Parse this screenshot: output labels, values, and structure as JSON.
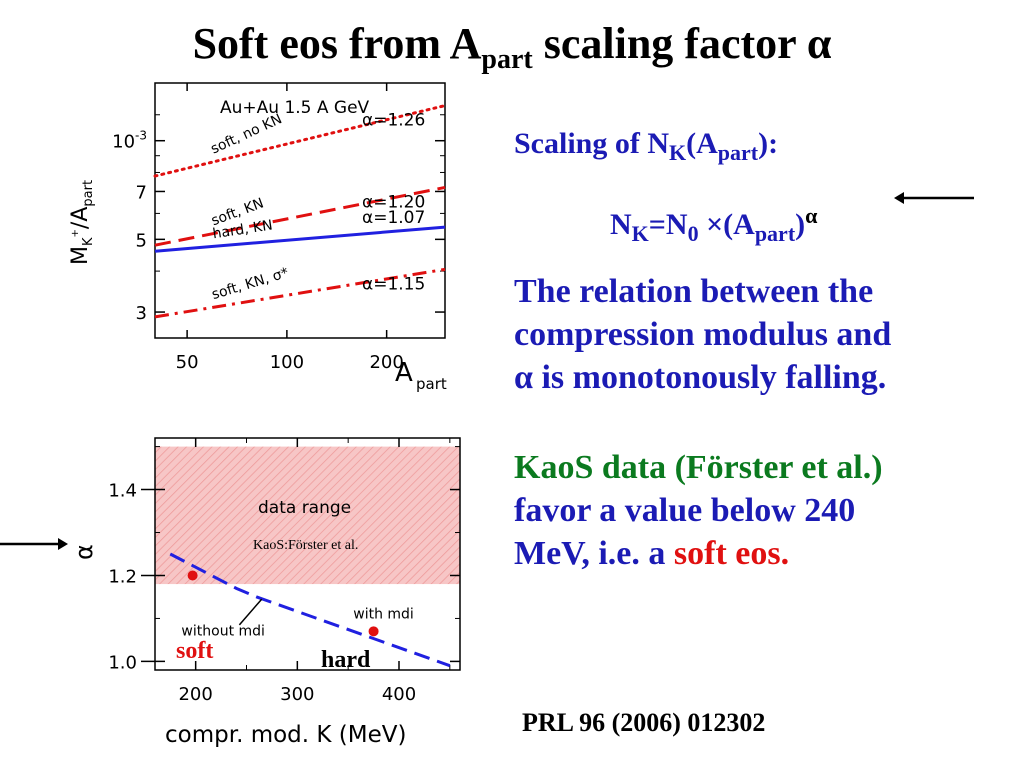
{
  "title": {
    "main": "Soft eos from A",
    "sub": "part",
    "rest": " scaling factor α"
  },
  "text": {
    "scaling_a": "Scaling of N",
    "scaling_b": "K",
    "scaling_c": "(A",
    "scaling_d": "part",
    "scaling_e": "):",
    "formula_a": "N",
    "formula_b": "K",
    "formula_c": "=N",
    "formula_d": "0",
    "formula_e": " ×(A",
    "formula_f": "part",
    "formula_g": ")",
    "formula_h": "α",
    "relation_1": "The relation between the",
    "relation_2": "compression modulus and",
    "relation_3": "α is monotonously falling.",
    "kaos_1": "KaoS data (Förster et al.)",
    "kaos_2": "favor a value below 240",
    "kaos_3a": "MeV, i.e. a ",
    "kaos_3b": "soft eos",
    "kaos_3c": ".",
    "reference": "PRL 96 (2006) 012302",
    "soft_label": "soft",
    "hard_label": "hard"
  },
  "colors": {
    "blue_text": "#1b1bb4",
    "green_text": "#0b7a1f",
    "red": "#e01010",
    "hard_line": "#2020e0",
    "data_range": "#f4b8b8"
  },
  "chart_data": [
    {
      "type": "line",
      "title": "Au+Au  1.5 A GeV",
      "xlabel": "A_part",
      "ylabel": "M_K+/A_part",
      "x_ticks": [
        "50",
        "100",
        "200"
      ],
      "y_ticks": [
        "10^-3",
        "7",
        "5",
        "3"
      ],
      "y_scale": "log",
      "xlim": [
        40,
        300
      ],
      "ylim": [
        0.00025,
        0.0015
      ],
      "series": [
        {
          "name": "soft, no KN",
          "alpha": "α=1.26",
          "style": "dotted",
          "color": "#e01010",
          "x": [
            40,
            300
          ],
          "y": [
            0.00078,
            0.00128
          ]
        },
        {
          "name": "soft, KN",
          "alpha": "α=1.20",
          "style": "dashed",
          "color": "#e01010",
          "x": [
            40,
            300
          ],
          "y": [
            0.00048,
            0.00072
          ]
        },
        {
          "name": "hard, KN",
          "alpha": "α=1.07",
          "style": "solid",
          "color": "#2020e0",
          "x": [
            40,
            300
          ],
          "y": [
            0.00046,
            0.000545
          ]
        },
        {
          "name": "soft, KN, σ*",
          "alpha": "α=1.15",
          "style": "dash-dot",
          "color": "#e01010",
          "x": [
            40,
            300
          ],
          "y": [
            0.00029,
            0.000405
          ]
        }
      ]
    },
    {
      "type": "line",
      "xlabel": "compr. mod.  K (MeV)",
      "ylabel": "α",
      "x_ticks": [
        "200",
        "300",
        "400"
      ],
      "y_ticks": [
        "1.0",
        "1.2",
        "1.4"
      ],
      "xlim": [
        160,
        460
      ],
      "ylim": [
        0.98,
        1.52
      ],
      "band": {
        "label": "data range",
        "sublabel": "KaoS:Förster et al.",
        "y": [
          1.18,
          1.5
        ]
      },
      "series": [
        {
          "name": "without mdi",
          "style": "dashed",
          "color": "#2020e0",
          "x": [
            175,
            240,
            260,
            450
          ],
          "y": [
            1.25,
            1.17,
            1.15,
            0.99
          ]
        },
        {
          "name": "with mdi",
          "style": "point",
          "color": "#e01010",
          "x": [
            197,
            375
          ],
          "y": [
            1.2,
            1.07
          ]
        }
      ]
    }
  ]
}
